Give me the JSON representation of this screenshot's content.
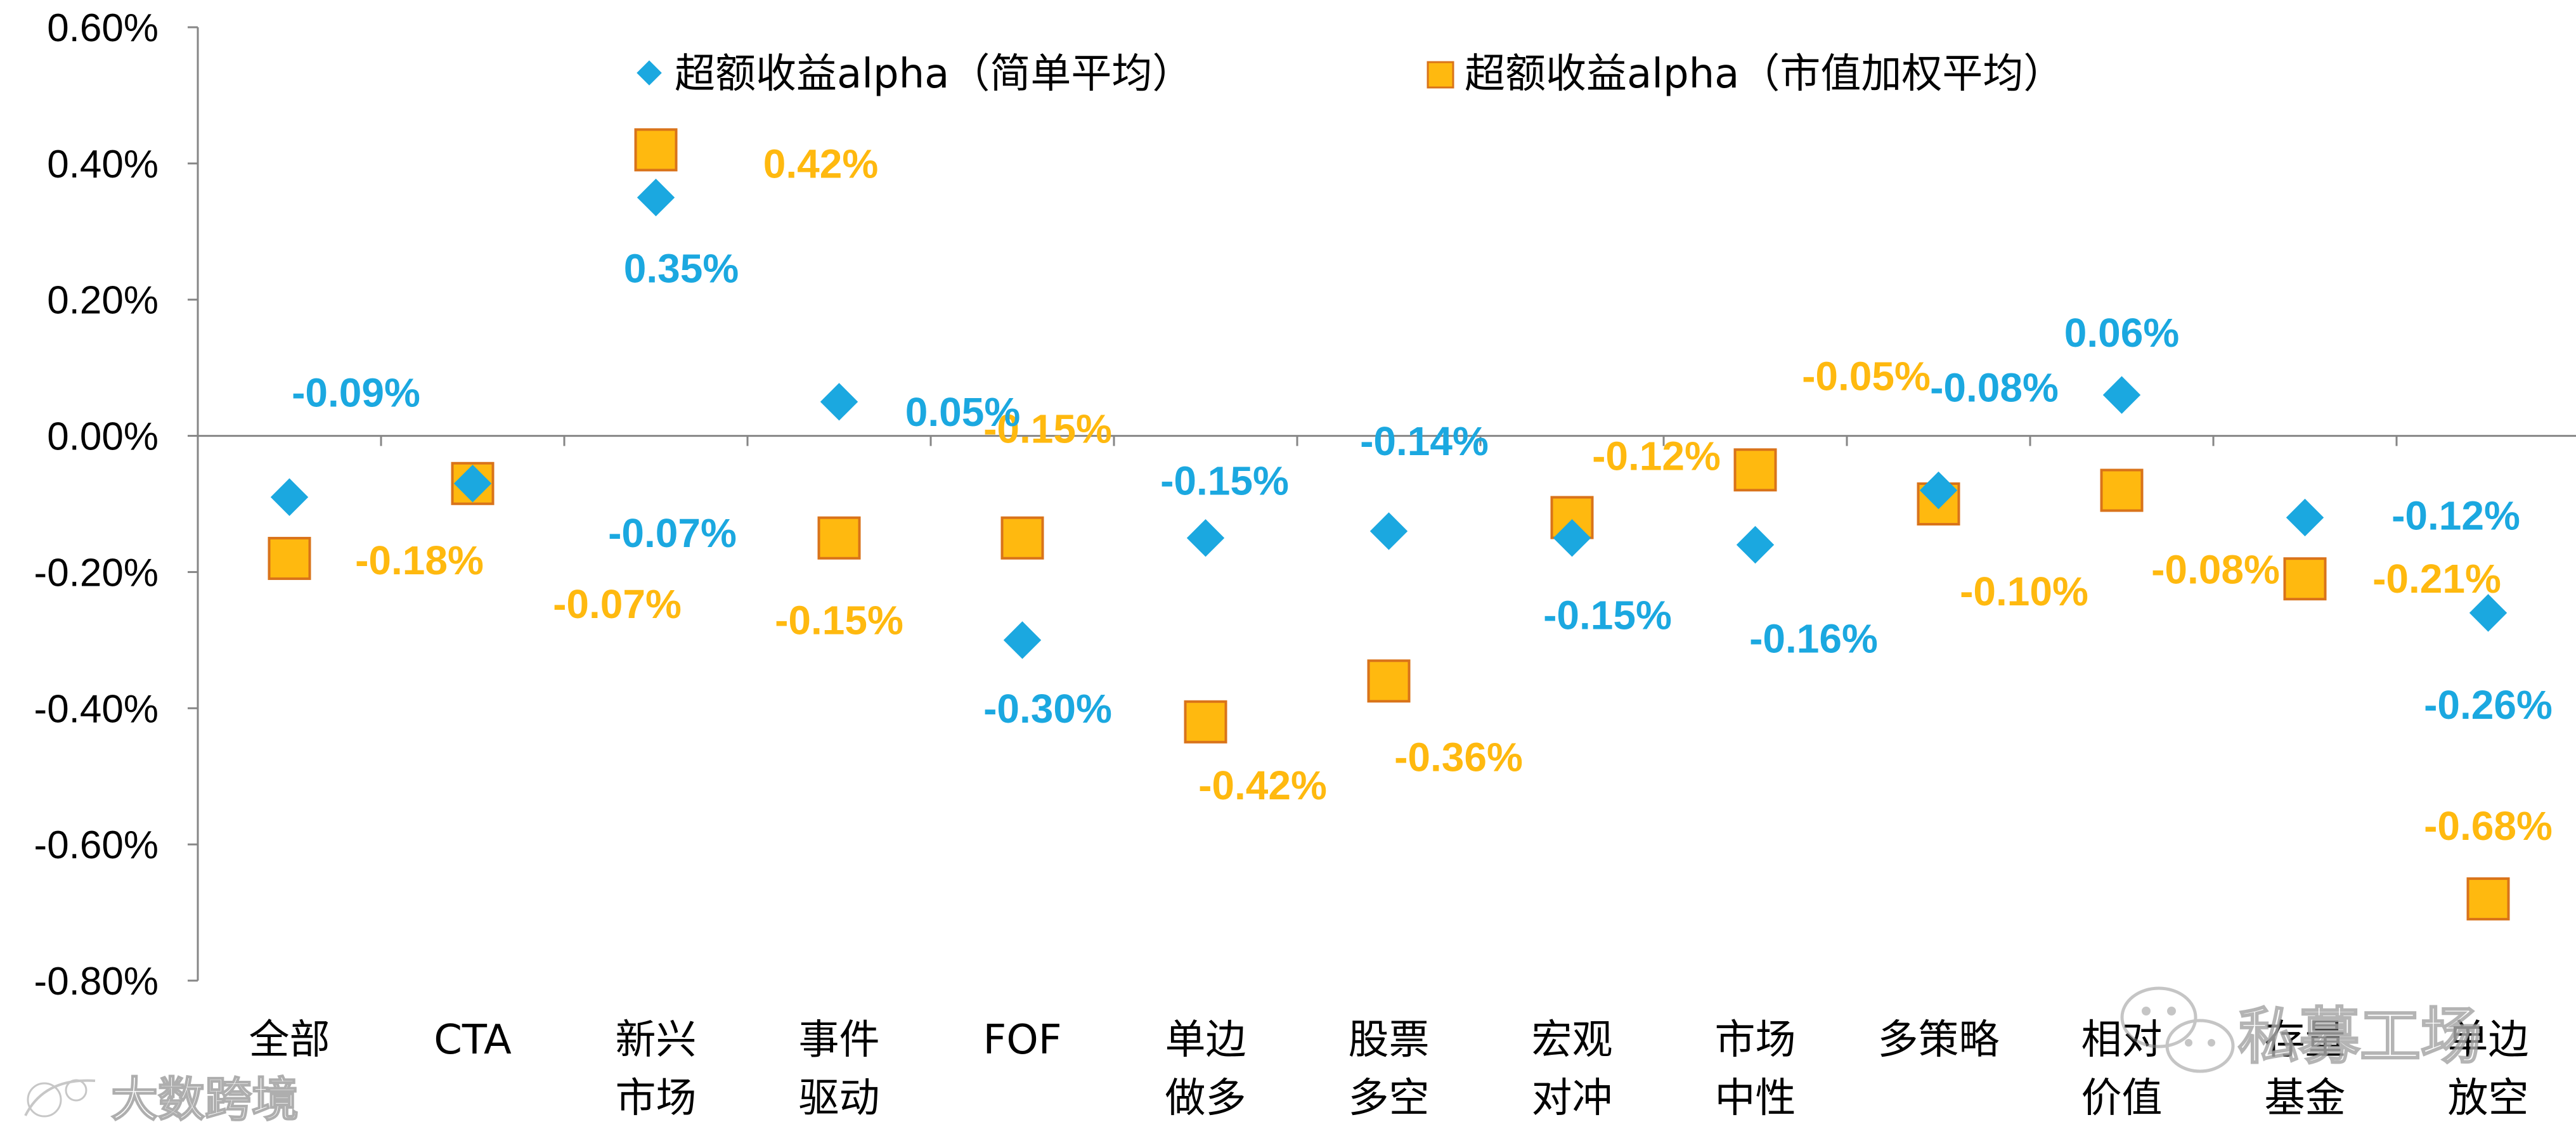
{
  "chart_data": {
    "type": "scatter",
    "title": "",
    "xlabel": "",
    "ylabel": "",
    "ylim": [
      -0.8,
      0.6
    ],
    "yticks": [
      0.6,
      0.4,
      0.2,
      0.0,
      -0.2,
      -0.4,
      -0.6,
      -0.8
    ],
    "ytick_labels": [
      "0.60%",
      "0.40%",
      "0.20%",
      "0.00%",
      "-0.20%",
      "-0.40%",
      "-0.60%",
      "-0.80%"
    ],
    "categories": [
      [
        "全部"
      ],
      [
        "CTA"
      ],
      [
        "新兴",
        "市场"
      ],
      [
        "事件",
        "驱动"
      ],
      [
        "FOF"
      ],
      [
        "单边",
        "做多"
      ],
      [
        "股票",
        "多空"
      ],
      [
        "宏观",
        "对冲"
      ],
      [
        "市场",
        "中性"
      ],
      [
        "多策略"
      ],
      [
        "相对",
        "价值"
      ],
      [
        "存量",
        "基金"
      ],
      [
        "单边",
        "放空"
      ]
    ],
    "legend_position": "top",
    "series": [
      {
        "name": "超额收益alpha（简单平均）",
        "marker": "diamond",
        "color": "#1BA8E0",
        "values": [
          -0.09,
          -0.07,
          0.35,
          0.05,
          -0.3,
          -0.15,
          -0.14,
          -0.15,
          -0.16,
          -0.08,
          0.06,
          -0.12,
          -0.26
        ],
        "labels": [
          "-0.09%",
          "-0.07%",
          "0.35%",
          "0.05%",
          "-0.30%",
          "-0.15%",
          "-0.14%",
          "-0.15%",
          "-0.16%",
          "-0.08%",
          "0.06%",
          "-0.12%",
          "-0.26%"
        ]
      },
      {
        "name": "超额收益alpha（市值加权平均）",
        "marker": "square",
        "color": "#FFB90F",
        "edge_color": "#D9731A",
        "values": [
          -0.18,
          -0.07,
          0.42,
          -0.15,
          -0.15,
          -0.42,
          -0.36,
          -0.12,
          -0.05,
          -0.1,
          -0.08,
          -0.21,
          -0.68
        ],
        "labels": [
          "-0.18%",
          "-0.07%",
          "0.42%",
          "-0.15%",
          "-0.15%",
          "-0.42%",
          "-0.36%",
          "-0.12%",
          "-0.05%",
          "-0.10%",
          "-0.08%",
          "-0.21%",
          "-0.68%"
        ]
      }
    ]
  },
  "watermarks": {
    "bottom_left": "大数跨境",
    "bottom_right": "私募工场"
  }
}
